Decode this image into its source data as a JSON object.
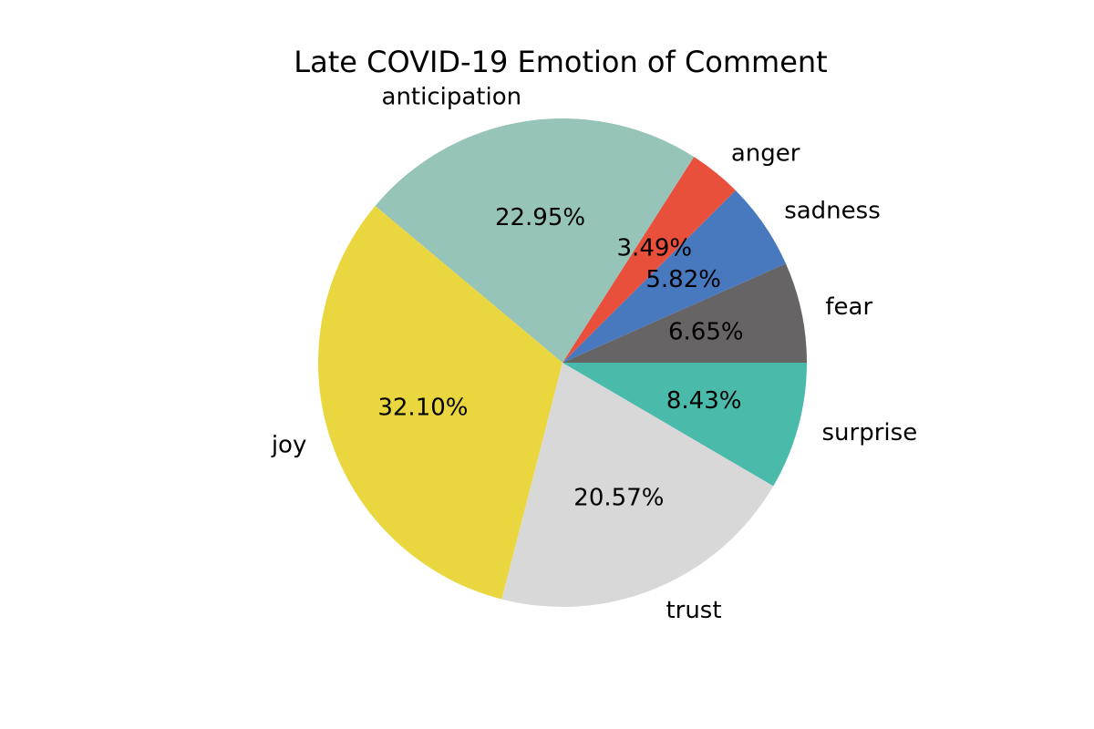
{
  "chart_data": {
    "type": "pie",
    "title": "Late COVID-19 Emotion of Comment",
    "start_angle_deg": 0,
    "direction": "counterclockwise",
    "slices": [
      {
        "label": "fear",
        "value": 6.65,
        "pct_label": "6.65%",
        "color": "#666464"
      },
      {
        "label": "sadness",
        "value": 5.82,
        "pct_label": "5.82%",
        "color": "#4879bf"
      },
      {
        "label": "anger",
        "value": 3.49,
        "pct_label": "3.49%",
        "color": "#e8503b"
      },
      {
        "label": "anticipation",
        "value": 22.95,
        "pct_label": "22.95%",
        "color": "#96c4b8"
      },
      {
        "label": "joy",
        "value": 32.1,
        "pct_label": "32.10%",
        "color": "#ead73f"
      },
      {
        "label": "trust",
        "value": 20.57,
        "pct_label": "20.57%",
        "color": "#d8d8d8"
      },
      {
        "label": "surprise",
        "value": 8.43,
        "pct_label": "8.43%",
        "color": "#4abaab"
      }
    ]
  }
}
